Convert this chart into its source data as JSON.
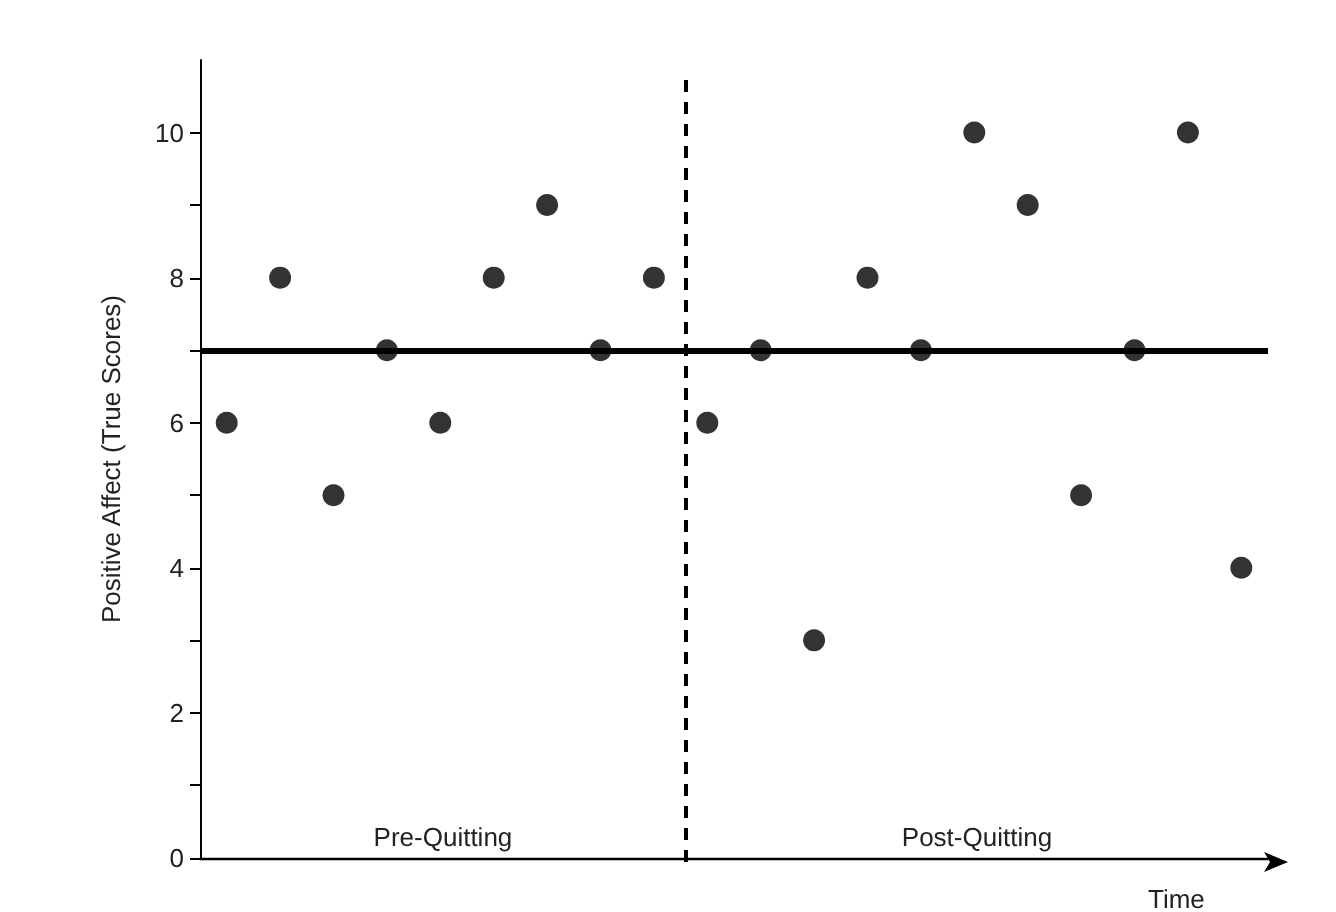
{
  "chart_data": {
    "type": "scatter",
    "xlabel": "Time",
    "ylabel": "Positive Affect (True Scores)",
    "categories": [
      null,
      null,
      null,
      null,
      null,
      null,
      null,
      null,
      null,
      null,
      null,
      null,
      null,
      null,
      null,
      null,
      null,
      null,
      null,
      null
    ],
    "series": [
      {
        "color": "#000000",
        "values": [
          6,
          8,
          5,
          7,
          6,
          8,
          9,
          7,
          8,
          6,
          7,
          3,
          8,
          7,
          10,
          9,
          5,
          7,
          10,
          4
        ]
      }
    ],
    "ylim": [
      0,
      11
    ],
    "yticks": [
      0,
      {
        "value": 1,
        "label": null
      },
      2,
      {
        "value": 3,
        "label": null
      },
      4,
      {
        "value": 5,
        "label": null
      },
      6,
      {
        "value": 7,
        "label": null
      },
      8,
      {
        "value": 9,
        "label": null
      },
      10
    ],
    "tick_labels": "y",
    "grid": false,
    "marker": "circle",
    "ref_lines": [
      {
        "axis": "y",
        "value": 7,
        "color": "#000000",
        "line_style": "solid"
      }
    ],
    "annotations": [
      "Pre-Quitting",
      "Post-Quitting"
    ]
  }
}
